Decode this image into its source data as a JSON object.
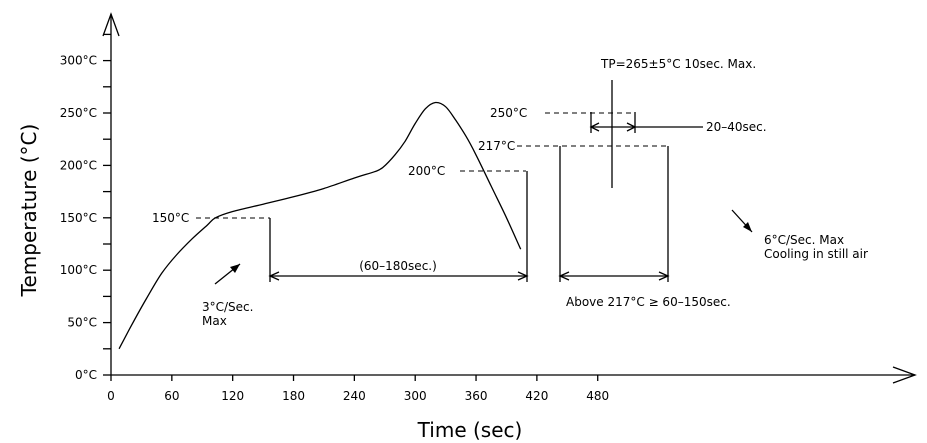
{
  "chart_data": {
    "type": "line",
    "title": "",
    "xlabel": "Time (sec)",
    "ylabel": "Temperature (°C)",
    "xlim": [
      0,
      530
    ],
    "ylim": [
      0,
      340
    ],
    "x_ticks": [
      {
        "value": 0,
        "label": "0"
      },
      {
        "value": 60,
        "label": "60"
      },
      {
        "value": 120,
        "label": "120"
      },
      {
        "value": 180,
        "label": "180"
      },
      {
        "value": 240,
        "label": "240"
      },
      {
        "value": 300,
        "label": "300"
      },
      {
        "value": 360,
        "label": "360"
      },
      {
        "value": 420,
        "label": "420"
      },
      {
        "value": 480,
        "label": "480"
      }
    ],
    "y_ticks": [
      {
        "value": 0,
        "label": "0°C"
      },
      {
        "value": 50,
        "label": "50°C"
      },
      {
        "value": 100,
        "label": "100°C"
      },
      {
        "value": 150,
        "label": "150°C"
      },
      {
        "value": 200,
        "label": "200°C"
      },
      {
        "value": 250,
        "label": "250°C"
      },
      {
        "value": 300,
        "label": "300°C"
      }
    ],
    "series": [
      {
        "x": [
          8,
          20,
          35,
          50,
          65,
          80,
          95,
          103,
          120,
          150,
          180,
          210,
          240,
          260,
          268,
          280,
          290,
          300,
          310,
          320,
          330,
          340,
          350,
          360,
          375,
          390,
          404
        ],
        "y": [
          25,
          47,
          73,
          97,
          115,
          130,
          143,
          150,
          156,
          163,
          170,
          178,
          188,
          194,
          198,
          210,
          223,
          240,
          254,
          260,
          256,
          243,
          228,
          210,
          180,
          150,
          120
        ]
      }
    ],
    "markers": [
      {
        "temp": 150,
        "label": "150°C"
      },
      {
        "temp": 200,
        "label": "200°C"
      },
      {
        "temp": 217,
        "label": "217°C"
      },
      {
        "temp": 250,
        "label": "250°C"
      }
    ],
    "annotations": {
      "peak": "TP=265±5°C  10sec. Max.",
      "window_20_40": "20–40sec.",
      "soak": "(60–180sec.)",
      "above_217": "Above 217°C ≥ 60–150sec.",
      "ramp_up_line1": "3°C/Sec.",
      "ramp_up_line2": "Max",
      "cooling_line1": "6°C/Sec. Max",
      "cooling_line2": "Cooling in still air"
    },
    "grid": false,
    "legend": "none"
  }
}
